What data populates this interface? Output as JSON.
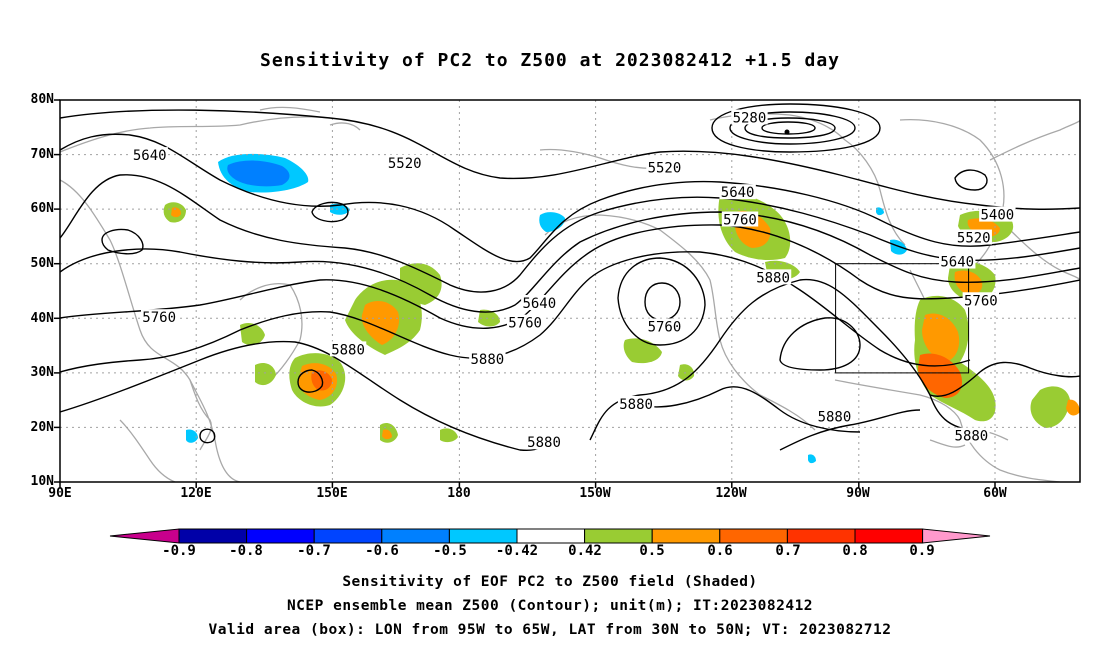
{
  "title": "Sensitivity of PC2 to Z500 at 2023082412 +1.5 day",
  "lat_labels": [
    "80N",
    "70N",
    "60N",
    "50N",
    "40N",
    "30N",
    "20N",
    "10N"
  ],
  "lon_labels": [
    "90E",
    "120E",
    "150E",
    "180",
    "150W",
    "120W",
    "90W",
    "60W"
  ],
  "colorbar": {
    "labels": [
      "-0.9",
      "-0.8",
      "-0.7",
      "-0.6",
      "-0.5",
      "-0.42",
      "0.42",
      "0.5",
      "0.6",
      "0.7",
      "0.8",
      "0.9"
    ],
    "colors": [
      "#0000a8",
      "#0000ff",
      "#0044ff",
      "#0080ff",
      "#00c8ff",
      "#ffffff",
      "#99cc33",
      "#ff9900",
      "#ff6600",
      "#ff3300",
      "#ff0000"
    ],
    "end_low_color": "#c8008c",
    "end_high_color": "#ff99cc"
  },
  "contour_labels": [
    {
      "text": "5280",
      "lon": 236,
      "lat": 76.8
    },
    {
      "text": "5640",
      "lon": 109,
      "lat": 69.9
    },
    {
      "text": "5520",
      "lon": 163,
      "lat": 68.5
    },
    {
      "text": "5520",
      "lon": 218,
      "lat": 67.6
    },
    {
      "text": "5640",
      "lon": 233.5,
      "lat": 63.1
    },
    {
      "text": "5760",
      "lon": 234,
      "lat": 58.1
    },
    {
      "text": "5400",
      "lon": 288.5,
      "lat": 59.0
    },
    {
      "text": "5520",
      "lon": 283.5,
      "lat": 54.8
    },
    {
      "text": "5640",
      "lon": 280,
      "lat": 50.4
    },
    {
      "text": "5760",
      "lon": 285,
      "lat": 43.3
    },
    {
      "text": "5880",
      "lon": 241,
      "lat": 47.5
    },
    {
      "text": "5640",
      "lon": 191.5,
      "lat": 42.8
    },
    {
      "text": "5760",
      "lon": 188.5,
      "lat": 39.2
    },
    {
      "text": "5880",
      "lon": 151,
      "lat": 34.3
    },
    {
      "text": "5880",
      "lon": 180.5,
      "lat": 32.5
    },
    {
      "text": "5760",
      "lon": 111,
      "lat": 40.2
    },
    {
      "text": "5760",
      "lon": 218,
      "lat": 38.5
    },
    {
      "text": "5880",
      "lon": 212,
      "lat": 24.3
    },
    {
      "text": "5880",
      "lon": 254,
      "lat": 22.0
    },
    {
      "text": "5880",
      "lon": 283,
      "lat": 18.5
    },
    {
      "text": "5880",
      "lon": 192.5,
      "lat": 17.3
    }
  ],
  "valid_area_box": {
    "lon_min": 265,
    "lon_max": 295,
    "lat_min": 30,
    "lat_max": 50
  },
  "footer": [
    "Sensitivity of EOF PC2 to Z500 field (Shaded)",
    "NCEP ensemble mean Z500 (Contour); unit(m); IT:2023082412",
    "Valid area (box): LON from 95W to 65W, LAT from 30N to 50N; VT: 2023082712"
  ]
}
